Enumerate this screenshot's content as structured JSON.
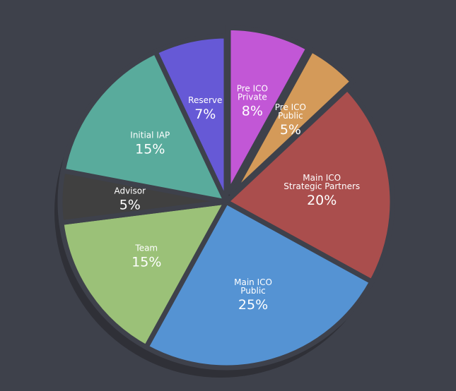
{
  "chart_data": {
    "type": "pie",
    "background": "#3e414b",
    "slices": [
      {
        "id": "pre-ico-private",
        "name_lines": [
          "Pre ICO",
          "Private"
        ],
        "value": 8,
        "label": "8%",
        "color": "#c257d6",
        "exploded": true
      },
      {
        "id": "pre-ico-public",
        "name_lines": [
          "Pre ICO",
          "Public"
        ],
        "value": 5,
        "label": "5%",
        "color": "#d49a59",
        "exploded": true
      },
      {
        "id": "main-ico-strategic-partners",
        "name_lines": [
          "Main ICO",
          "Strategic Partners"
        ],
        "value": 20,
        "label": "20%",
        "color": "#aa4e4d",
        "exploded": false
      },
      {
        "id": "main-ico-public",
        "name_lines": [
          "Main ICO",
          "Public"
        ],
        "value": 25,
        "label": "25%",
        "color": "#5593d3",
        "exploded": false
      },
      {
        "id": "team",
        "name_lines": [
          "Team"
        ],
        "value": 15,
        "label": "15%",
        "color": "#9bc178",
        "exploded": false
      },
      {
        "id": "advisor",
        "name_lines": [
          "Advisor"
        ],
        "value": 5,
        "label": "5%",
        "color": "#404040",
        "exploded": false
      },
      {
        "id": "initial-iap",
        "name_lines": [
          "Initial IAP"
        ],
        "value": 15,
        "label": "15%",
        "color": "#59ab9c",
        "exploded": false
      },
      {
        "id": "reserve",
        "name_lines": [
          "Reserve"
        ],
        "value": 7,
        "label": "7%",
        "color": "#6659d6",
        "exploded": false
      }
    ]
  }
}
